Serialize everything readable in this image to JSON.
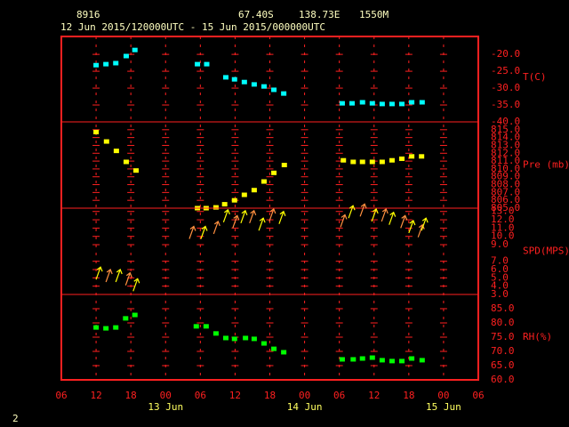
{
  "header": {
    "station": "8916",
    "lat": "67.40S",
    "lon": "138.73E",
    "elev": "1550M",
    "period": "12 Jun 2015/120000UTC - 15 Jun 2015/000000UTC"
  },
  "footer": "2",
  "chart_data": [
    {
      "type": "scatter",
      "label": "T(C)",
      "color": "#00ffff",
      "x": [
        12.0,
        13.7,
        15.4,
        17.2,
        18.7,
        29.5,
        31.1,
        34.4,
        35.9,
        37.6,
        39.3,
        41.0,
        42.7,
        44.4,
        54.5,
        56.2,
        58.0,
        59.7,
        61.4,
        63.1,
        64.8,
        66.5,
        68.3
      ],
      "values": [
        -23.2,
        -22.9,
        -22.6,
        -20.5,
        -18.7,
        -22.9,
        -22.9,
        -26.8,
        -27.4,
        -28.2,
        -28.9,
        -29.5,
        -30.5,
        -31.6,
        -34.5,
        -34.5,
        -34.2,
        -34.5,
        -34.7,
        -34.7,
        -34.7,
        -34.2,
        -34.2
      ],
      "ylim": [
        -40,
        -14.7
      ],
      "yticks": [
        {
          "value": -40,
          "label": "-40.0"
        },
        {
          "value": -35,
          "label": "-35.0"
        },
        {
          "value": -30,
          "label": "-30.0"
        },
        {
          "value": -25,
          "label": "-25.0"
        },
        {
          "value": -20,
          "label": "-20.0"
        }
      ]
    },
    {
      "type": "scatter",
      "label": "Pre (mb)",
      "color": "#ffff00",
      "x": [
        12.0,
        13.8,
        15.5,
        17.2,
        18.9,
        29.5,
        31.0,
        32.7,
        34.2,
        35.9,
        37.6,
        39.3,
        41.0,
        42.7,
        44.5,
        54.7,
        56.4,
        58.0,
        59.7,
        61.4,
        63.1,
        64.8,
        66.5,
        68.2
      ],
      "values": [
        814.7,
        813.5,
        812.3,
        810.9,
        809.8,
        805.0,
        805.0,
        805.1,
        805.5,
        806.0,
        806.7,
        807.3,
        808.4,
        809.5,
        810.5,
        811.1,
        810.9,
        810.9,
        810.9,
        810.9,
        811.1,
        811.3,
        811.6,
        811.6
      ],
      "ylim": [
        805,
        816
      ],
      "yticks": [
        {
          "value": 805,
          "label": "805.0"
        },
        {
          "value": 806,
          "label": "806.0"
        },
        {
          "value": 807,
          "label": "807.0"
        },
        {
          "value": 808,
          "label": "808.0"
        },
        {
          "value": 809,
          "label": "809.0"
        },
        {
          "value": 810,
          "label": "810.0"
        },
        {
          "value": 811,
          "label": "811.0"
        },
        {
          "value": 812,
          "label": "812.0"
        },
        {
          "value": 813,
          "label": "813.0"
        },
        {
          "value": 814,
          "label": "814.0"
        },
        {
          "value": 815,
          "label": "815.0"
        }
      ]
    },
    {
      "type": "arrow",
      "label": "SPD(MPS)",
      "color": "#ffff00",
      "x": [
        12.0,
        13.7,
        15.4,
        17.1,
        18.4,
        28.1,
        30.1,
        32.3,
        34.0,
        35.6,
        37.0,
        38.5,
        40.1,
        41.9,
        43.6,
        54.2,
        55.6,
        57.6,
        59.6,
        61.3,
        62.6,
        64.6,
        66.0,
        67.6,
        68.2
      ],
      "values": [
        4.8,
        4.5,
        4.5,
        4.1,
        3.4,
        9.7,
        9.7,
        10.3,
        11.7,
        11.0,
        11.6,
        11.6,
        10.7,
        11.8,
        11.5,
        11.1,
        12.2,
        12.4,
        11.8,
        11.8,
        11.4,
        11.0,
        10.4,
        9.9,
        10.7
      ],
      "ylim": [
        3,
        13.4
      ],
      "yticks": [
        {
          "value": 3,
          "label": "3.0"
        },
        {
          "value": 4,
          "label": "4.0"
        },
        {
          "value": 5,
          "label": "5.0"
        },
        {
          "value": 6,
          "label": "6.0"
        },
        {
          "value": 7,
          "label": "7.0"
        },
        {
          "value": 9,
          "label": "9.0"
        },
        {
          "value": 10,
          "label": "10.0"
        },
        {
          "value": 11,
          "label": "11.0"
        },
        {
          "value": 12,
          "label": "12.0"
        },
        {
          "value": 13,
          "label": "13.0"
        }
      ]
    },
    {
      "type": "scatter",
      "label": "RH(%)",
      "color": "#00ff00",
      "x": [
        12.0,
        13.7,
        15.4,
        17.1,
        18.7,
        29.3,
        31.0,
        32.7,
        34.4,
        35.9,
        37.8,
        39.3,
        41.0,
        42.7,
        44.4,
        54.5,
        56.4,
        58.0,
        59.7,
        61.4,
        63.1,
        64.8,
        66.5,
        68.3
      ],
      "values": [
        78.4,
        78.1,
        78.4,
        81.6,
        82.8,
        78.8,
        78.8,
        76.3,
        74.7,
        74.4,
        74.7,
        74.4,
        72.8,
        70.9,
        69.7,
        67.2,
        67.2,
        67.5,
        67.8,
        66.9,
        66.6,
        66.6,
        67.5,
        66.9
      ],
      "ylim": [
        60,
        90
      ],
      "yticks": [
        {
          "value": 60,
          "label": "60.0"
        },
        {
          "value": 65,
          "label": "65.0"
        },
        {
          "value": 70,
          "label": "70.0"
        },
        {
          "value": 75,
          "label": "75.0"
        },
        {
          "value": 80,
          "label": "80.0"
        },
        {
          "value": 85,
          "label": "85.0"
        }
      ],
      "xlim": [
        6,
        78
      ],
      "xticks": [
        {
          "value": 6,
          "label": "06"
        },
        {
          "value": 12,
          "label": "12"
        },
        {
          "value": 18,
          "label": "18"
        },
        {
          "value": 24,
          "label": "00"
        },
        {
          "value": 30,
          "label": "06"
        },
        {
          "value": 36,
          "label": "12"
        },
        {
          "value": 42,
          "label": "18"
        },
        {
          "value": 48,
          "label": "00"
        },
        {
          "value": 54,
          "label": "06"
        },
        {
          "value": 60,
          "label": "12"
        },
        {
          "value": 66,
          "label": "18"
        },
        {
          "value": 72,
          "label": "00"
        },
        {
          "value": 78,
          "label": "06"
        }
      ],
      "date_labels": [
        {
          "value": 24,
          "label": "13 Jun"
        },
        {
          "value": 48,
          "label": "14 Jun"
        },
        {
          "value": 72,
          "label": "15 Jun"
        }
      ]
    }
  ]
}
